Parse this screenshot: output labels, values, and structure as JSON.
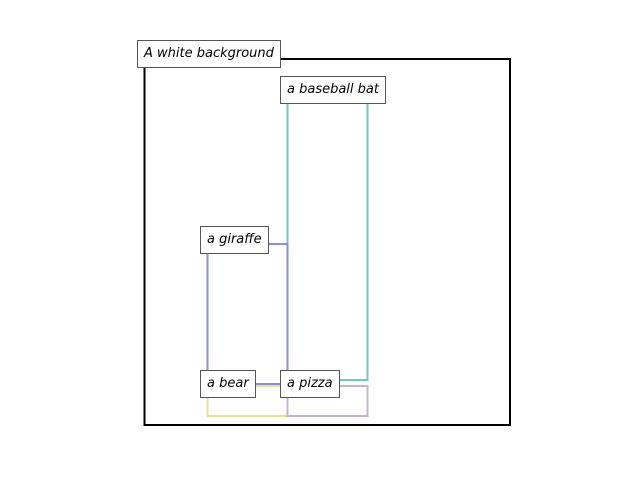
{
  "labels": {
    "background": "A white background",
    "baseball_bat": "a baseball bat",
    "giraffe": "a giraffe",
    "bear": "a bear",
    "pizza": "a pizza"
  },
  "colors": {
    "frame": "#000000",
    "baseball_bat": "#6cc7c6",
    "giraffe": "#8a8fdb",
    "bear": "#e8e48e",
    "pizza": "#c4b4cf"
  }
}
